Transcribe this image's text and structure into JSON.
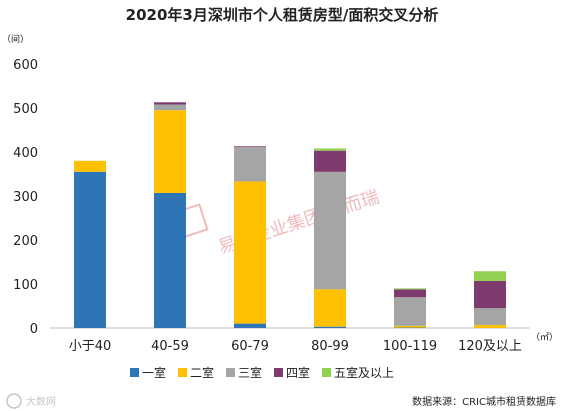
{
  "chart_data": {
    "type": "bar",
    "stacked": true,
    "title": "2020年3月深圳市个人租赁房型/面积交叉分析",
    "y_unit": "（间）",
    "x_unit": "（㎡）",
    "categories": [
      "小于40",
      "40-59",
      "60-79",
      "80-99",
      "100-119",
      "120及以上"
    ],
    "ylim": [
      0,
      600
    ],
    "yticks": [
      0,
      100,
      200,
      300,
      400,
      500,
      600
    ],
    "grid": false,
    "legend_position": "bottom",
    "series": [
      {
        "name": "一室",
        "color": "#2e75b6",
        "values": [
          355,
          307,
          10,
          3,
          1,
          0
        ]
      },
      {
        "name": "二室",
        "color": "#ffc000",
        "values": [
          25,
          188,
          323,
          85,
          4,
          7
        ]
      },
      {
        "name": "三室",
        "color": "#a5a5a5",
        "values": [
          0,
          13,
          78,
          267,
          65,
          38
        ]
      },
      {
        "name": "四室",
        "color": "#7e3b6f",
        "values": [
          0,
          5,
          2,
          48,
          18,
          62
        ]
      },
      {
        "name": "五室及以上",
        "color": "#92d050",
        "values": [
          0,
          0,
          0,
          5,
          2,
          22
        ]
      }
    ]
  },
  "watermark": "易居企业集团·克而瑞",
  "footer": {
    "source": "数据来源：CRIC城市租赁数据库",
    "logo_text": "大数网"
  }
}
